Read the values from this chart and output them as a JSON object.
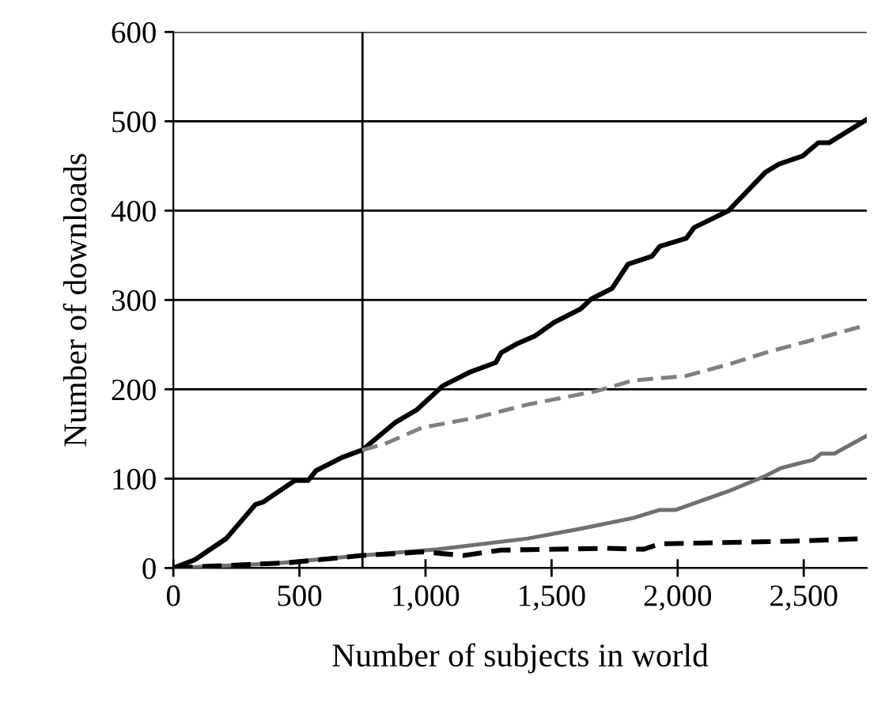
{
  "chart_data": {
    "type": "line",
    "xlabel": "Number of subjects in world",
    "ylabel": "Number of downloads",
    "xlim": [
      0,
      2750
    ],
    "ylim": [
      0,
      600
    ],
    "xticks": [
      0,
      500,
      {
        "value": 1000,
        "label": "1,000"
      },
      {
        "value": 1500,
        "label": "1,500"
      },
      {
        "value": 2000,
        "label": "2,000"
      },
      {
        "value": 2500,
        "label": "2,500"
      }
    ],
    "yticks": [
      0,
      100,
      200,
      300,
      400,
      500,
      600
    ],
    "grid": "y",
    "marker": "none",
    "ref_lines": [
      {
        "axis": "x",
        "value": 750,
        "color": "#000000"
      }
    ],
    "series": [
      {
        "color": "#000000",
        "line_style": "solid",
        "x": [
          0,
          84,
          210,
          325,
          357,
          482,
          535,
          566,
          671,
          749,
          881,
          965,
          1069,
          1174,
          1279,
          1300,
          1363,
          1436,
          1510,
          1615,
          1657,
          1740,
          1803,
          1898,
          1929,
          2034,
          2065,
          2202,
          2348,
          2401,
          2495,
          2558,
          2600,
          2750
        ],
        "values": [
          0,
          9,
          33,
          71,
          74,
          98,
          98,
          109,
          124,
          132,
          163,
          177,
          204,
          219,
          230,
          241,
          251,
          260,
          275,
          290,
          301,
          313,
          340,
          349,
          360,
          369,
          381,
          400,
          443,
          452,
          461,
          476,
          476,
          502
        ]
      },
      {
        "color": "#808080",
        "line_style": "dashed",
        "x": [
          749,
          839,
          986,
          1195,
          1405,
          1678,
          1824,
          2034,
          2202,
          2348,
          2558,
          2750
        ],
        "values": [
          132,
          139,
          157,
          168,
          183,
          198,
          210,
          215,
          228,
          241,
          257,
          272
        ]
      },
      {
        "color": "#707070",
        "line_style": "solid",
        "x": [
          0,
          400,
          749,
          1049,
          1405,
          1615,
          1824,
          1929,
          1992,
          2202,
          2348,
          2411,
          2537,
          2569,
          2621,
          2750
        ],
        "values": [
          0,
          5,
          14,
          21,
          33,
          44,
          56,
          65,
          65,
          86,
          103,
          112,
          121,
          128,
          128,
          148
        ]
      },
      {
        "color": "#000000",
        "line_style": "dashed",
        "x": [
          0,
          147,
          461,
          749,
          986,
          1153,
          1300,
          1720,
          1866,
          1929,
          2453,
          2750
        ],
        "values": [
          0,
          2,
          6,
          14,
          18,
          14,
          20,
          22,
          21,
          27,
          30,
          33
        ]
      }
    ]
  }
}
